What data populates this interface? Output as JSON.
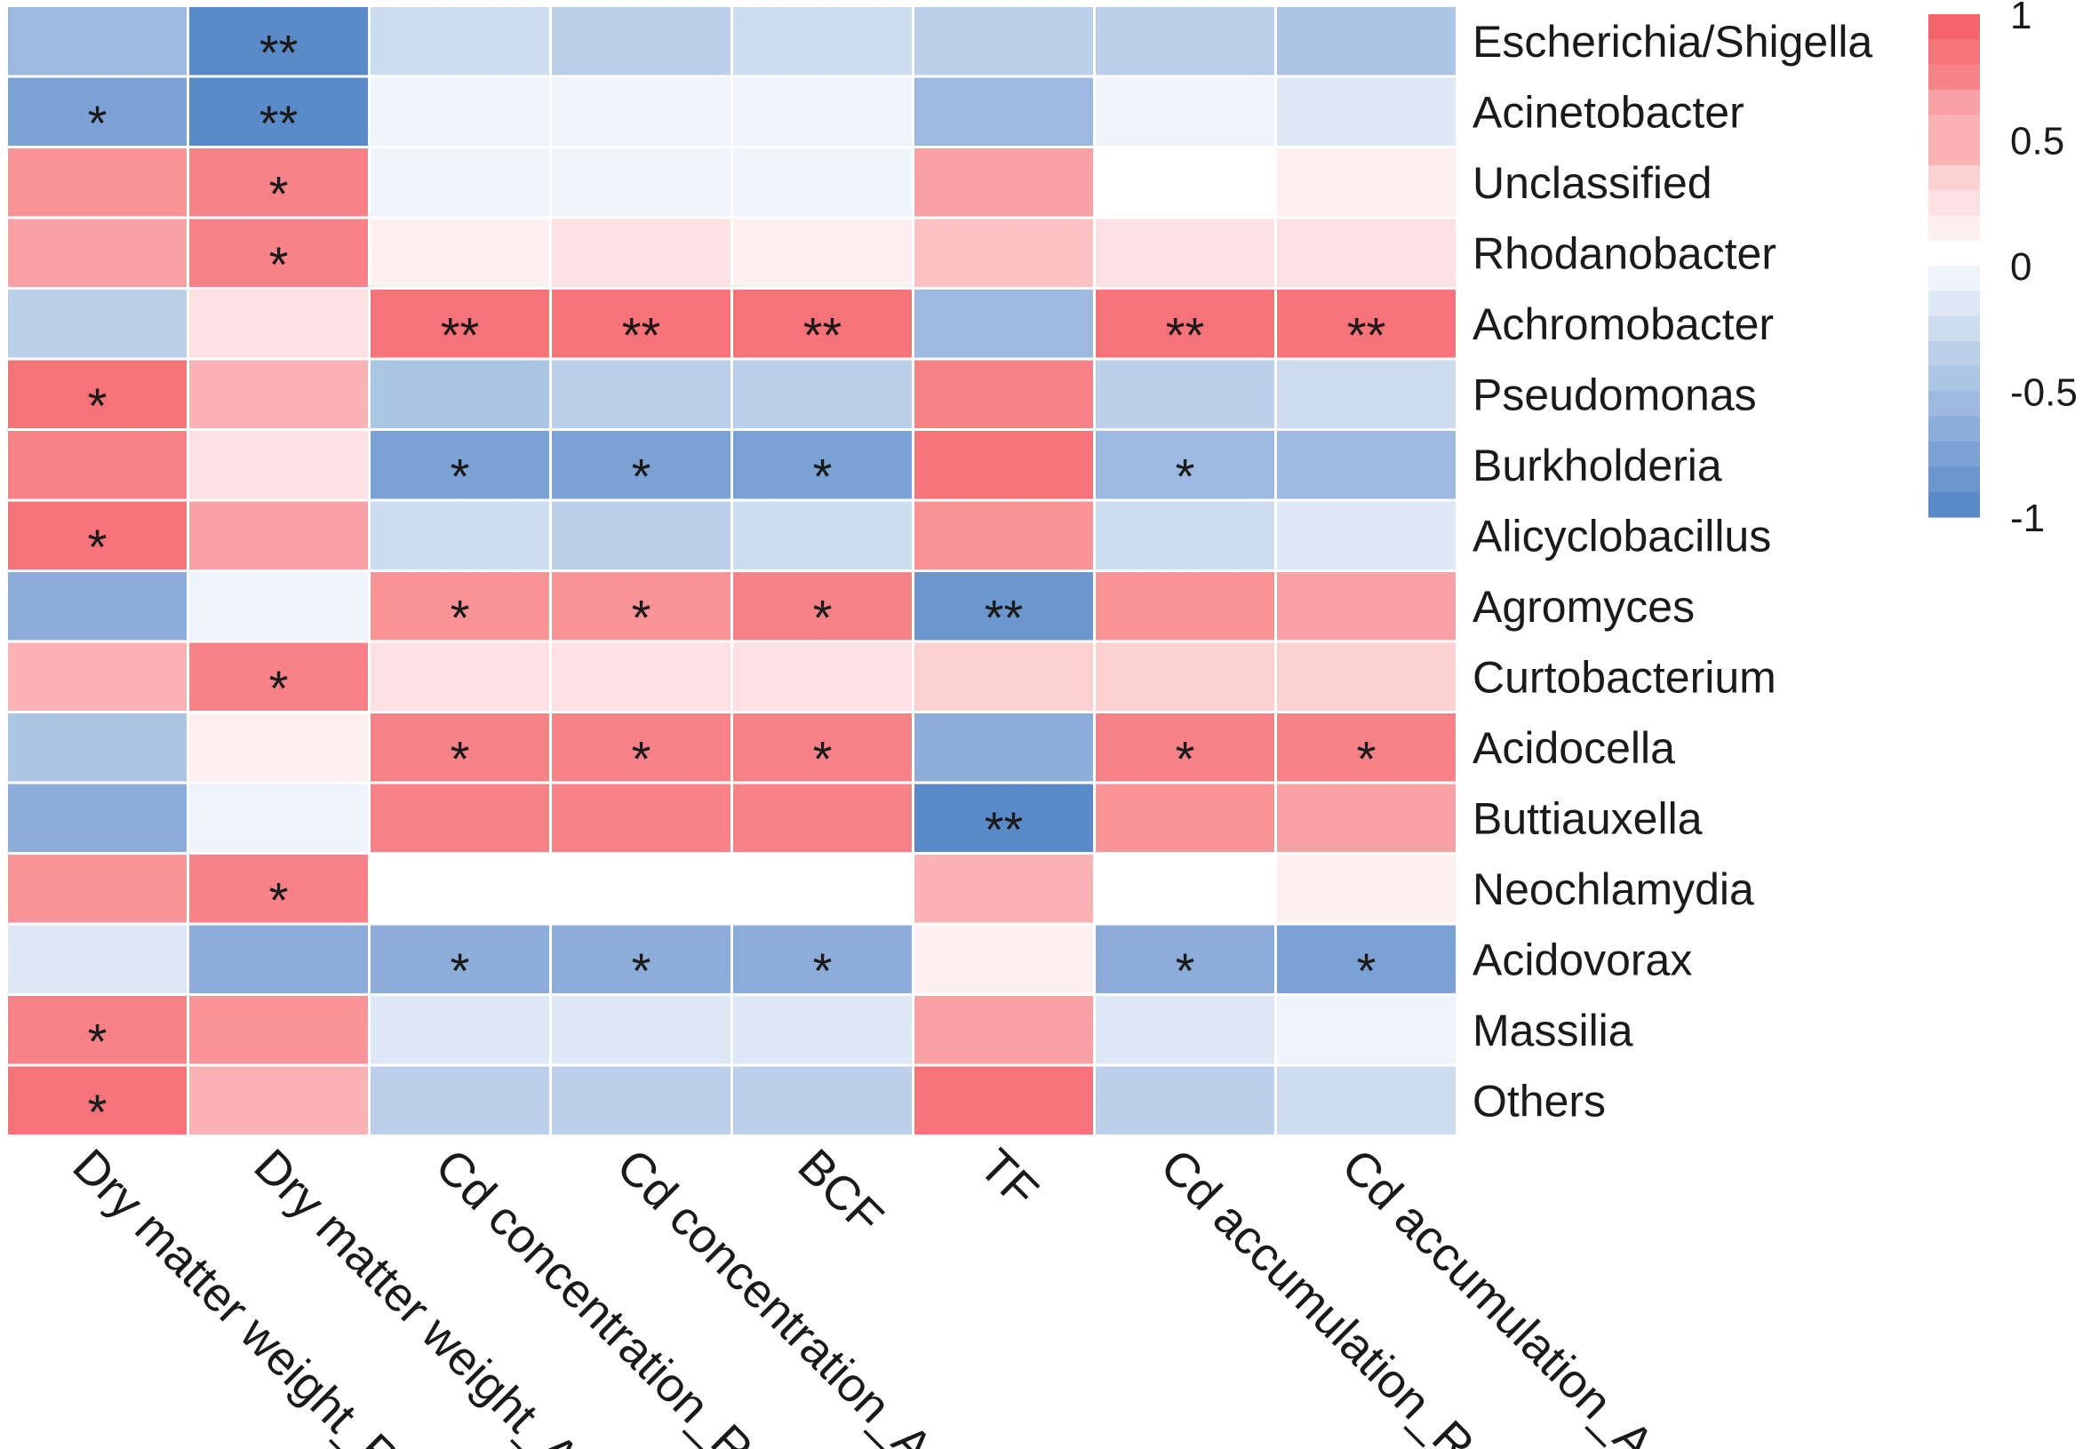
{
  "chart_data": {
    "type": "heatmap",
    "title": "",
    "columns": [
      "Dry matter weight_R",
      "Dry matter weight_A",
      "Cd concentration_R",
      "Cd concentration_A",
      "BCF",
      "TF",
      "Cd accumulation_R",
      "Cd accumulation_A"
    ],
    "rows": [
      "Escherichia/Shigella",
      "Acinetobacter",
      "Unclassified",
      "Rhodanobacter",
      "Achromobacter",
      "Pseudomonas",
      "Burkholderia",
      "Alicyclobacillus",
      "Agromyces",
      "Curtobacterium",
      "Acidocella",
      "Buttiauxella",
      "Neochlamydia",
      "Acidovorax",
      "Massilia",
      "Others"
    ],
    "values": [
      [
        -0.55,
        -0.95,
        -0.3,
        -0.35,
        -0.3,
        -0.35,
        -0.35,
        -0.45
      ],
      [
        -0.8,
        -0.95,
        -0.05,
        -0.1,
        -0.05,
        -0.6,
        -0.1,
        -0.2
      ],
      [
        0.7,
        0.8,
        -0.08,
        -0.05,
        -0.1,
        0.55,
        -0.03,
        0.05
      ],
      [
        0.55,
        0.8,
        0.08,
        0.15,
        0.1,
        0.35,
        0.15,
        0.2
      ],
      [
        -0.35,
        0.2,
        0.85,
        0.85,
        0.85,
        -0.6,
        0.85,
        0.85
      ],
      [
        0.85,
        0.45,
        -0.45,
        -0.4,
        -0.4,
        0.8,
        -0.35,
        -0.3
      ],
      [
        0.8,
        0.2,
        -0.75,
        -0.75,
        -0.75,
        0.85,
        -0.6,
        -0.55
      ],
      [
        0.85,
        0.6,
        -0.3,
        -0.35,
        -0.3,
        0.7,
        -0.25,
        -0.15
      ],
      [
        -0.65,
        -0.1,
        0.7,
        0.7,
        0.75,
        -0.9,
        0.65,
        0.6
      ],
      [
        0.5,
        0.8,
        0.15,
        0.2,
        0.2,
        0.3,
        0.25,
        0.3
      ],
      [
        -0.45,
        0.1,
        0.8,
        0.8,
        0.8,
        -0.65,
        0.8,
        0.75
      ],
      [
        -0.7,
        -0.1,
        0.75,
        0.75,
        0.75,
        -0.95,
        0.7,
        0.6
      ],
      [
        0.65,
        0.8,
        -0.02,
        -0.02,
        -0.02,
        0.45,
        0.03,
        0.12
      ],
      [
        -0.15,
        -0.65,
        -0.7,
        -0.7,
        -0.65,
        0.12,
        -0.7,
        -0.75
      ],
      [
        0.8,
        0.7,
        -0.2,
        -0.2,
        -0.2,
        0.6,
        -0.15,
        -0.05
      ],
      [
        0.85,
        0.45,
        -0.4,
        -0.4,
        -0.4,
        0.85,
        -0.4,
        -0.3
      ]
    ],
    "significance": [
      [
        "",
        "**",
        "",
        "",
        "",
        "",
        "",
        ""
      ],
      [
        "*",
        "**",
        "",
        "",
        "",
        "",
        "",
        ""
      ],
      [
        "",
        "*",
        "",
        "",
        "",
        "",
        "",
        ""
      ],
      [
        "",
        "*",
        "",
        "",
        "",
        "",
        "",
        ""
      ],
      [
        "",
        "",
        "**",
        "**",
        "**",
        "",
        "**",
        "**"
      ],
      [
        "*",
        "",
        "",
        "",
        "",
        "",
        "",
        ""
      ],
      [
        "",
        "",
        "*",
        "*",
        "*",
        "",
        "*",
        ""
      ],
      [
        "*",
        "",
        "",
        "",
        "",
        "",
        "",
        ""
      ],
      [
        "",
        "",
        "*",
        "*",
        "*",
        "**",
        "",
        ""
      ],
      [
        "",
        "*",
        "",
        "",
        "",
        "",
        "",
        ""
      ],
      [
        "",
        "",
        "*",
        "*",
        "*",
        "",
        "*",
        "*"
      ],
      [
        "",
        "",
        "",
        "",
        "",
        "**",
        "",
        ""
      ],
      [
        "",
        "*",
        "",
        "",
        "",
        "",
        "",
        ""
      ],
      [
        "",
        "",
        "*",
        "*",
        "*",
        "",
        "*",
        "*"
      ],
      [
        "*",
        "",
        "",
        "",
        "",
        "",
        "",
        ""
      ],
      [
        "*",
        "",
        "",
        "",
        "",
        "",
        "",
        ""
      ]
    ],
    "color_scale": {
      "min": -1,
      "max": 1,
      "steps": 20,
      "low_color": "#5b8ac9",
      "mid_color": "#ffffff",
      "high_color": "#f5646a"
    },
    "legend": {
      "placement": "right",
      "ticks": [
        "1",
        "0.5",
        "0",
        "-0.5",
        "-1"
      ],
      "tick_values": [
        1,
        0.5,
        0,
        -0.5,
        -1
      ]
    }
  }
}
